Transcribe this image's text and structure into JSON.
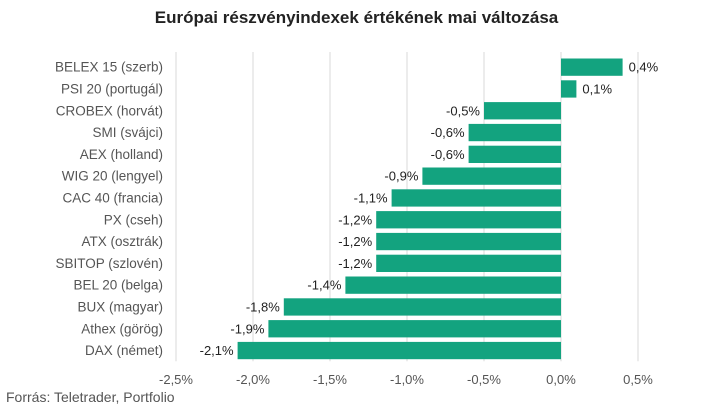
{
  "chart_data": {
    "type": "bar",
    "orientation": "horizontal",
    "title": "Európai részvényindexek értékének mai változása",
    "categories": [
      "BELEX 15 (szerb)",
      "PSI 20 (portugál)",
      "CROBEX (horvát)",
      "SMI (svájci)",
      "AEX (holland)",
      "WIG 20 (lengyel)",
      "CAC 40 (francia)",
      "PX (cseh)",
      "ATX (osztrák)",
      "SBITOP (szlovén)",
      "BEL 20 (belga)",
      "BUX (magyar)",
      "Athex (görög)",
      "DAX (német)"
    ],
    "values": [
      0.4,
      0.1,
      -0.5,
      -0.6,
      -0.6,
      -0.9,
      -1.1,
      -1.2,
      -1.2,
      -1.2,
      -1.4,
      -1.8,
      -1.9,
      -2.1
    ],
    "value_labels": [
      "0,4%",
      "0,1%",
      "-0,5%",
      "-0,6%",
      "-0,6%",
      "-0,9%",
      "-1,1%",
      "-1,2%",
      "-1,2%",
      "-1,2%",
      "-1,4%",
      "-1,8%",
      "-1,9%",
      "-2,1%"
    ],
    "xlim": [
      -2.5,
      0.5
    ],
    "xticks": [
      -2.5,
      -2.0,
      -1.5,
      -1.0,
      -0.5,
      0.0,
      0.5
    ],
    "xtick_labels": [
      "-2,5%",
      "-2,0%",
      "-1,5%",
      "-1,0%",
      "-0,5%",
      "0,0%",
      "0,5%"
    ],
    "grid": "vertical",
    "bar_color": "#13a37f",
    "grid_color": "#d9d9d9"
  },
  "source": "Forrás: Teletrader, Portfolio"
}
